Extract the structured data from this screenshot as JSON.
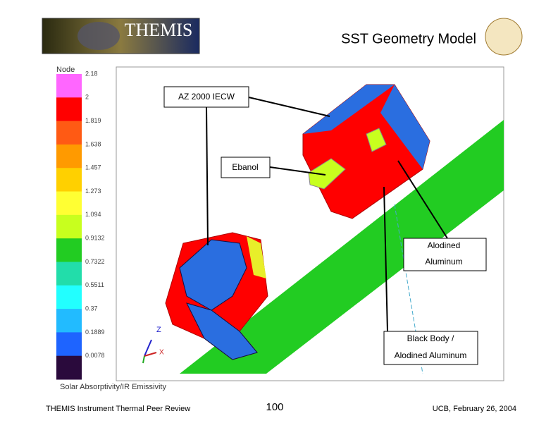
{
  "header": {
    "logo_text": "THEMIS",
    "title": "SST Geometry Model"
  },
  "legend": {
    "heading": "Node",
    "labels": [
      "2.18",
      "2",
      "1.819",
      "1.638",
      "1.457",
      "1.273",
      "1.094",
      "0.9132",
      "0.7322",
      "0.5511",
      "0.37",
      "0.1889",
      "0.0078"
    ],
    "colors": [
      "#ff66ff",
      "#ff0000",
      "#ff5a14",
      "#ff9a00",
      "#ffd000",
      "#ffff33",
      "#c8ff1e",
      "#22cc22",
      "#22ddaa",
      "#22ffff",
      "#22bbff",
      "#1e64ff",
      "#2a0a3c"
    ],
    "caption": "Solar Absorptivity/IR Emissivity"
  },
  "callouts": [
    {
      "text": "AZ 2000 IECW"
    },
    {
      "text": "Ebanol"
    },
    {
      "lines": [
        "Alodined",
        "Aluminum"
      ]
    },
    {
      "lines": [
        "Black Body /",
        "Alodined Aluminum"
      ]
    }
  ],
  "axis_labels": {
    "z": "Z",
    "x": "X"
  },
  "footer": {
    "left": "THEMIS Instrument Thermal Peer Review",
    "center": "100",
    "right": "UCB, February 26, 2004"
  }
}
